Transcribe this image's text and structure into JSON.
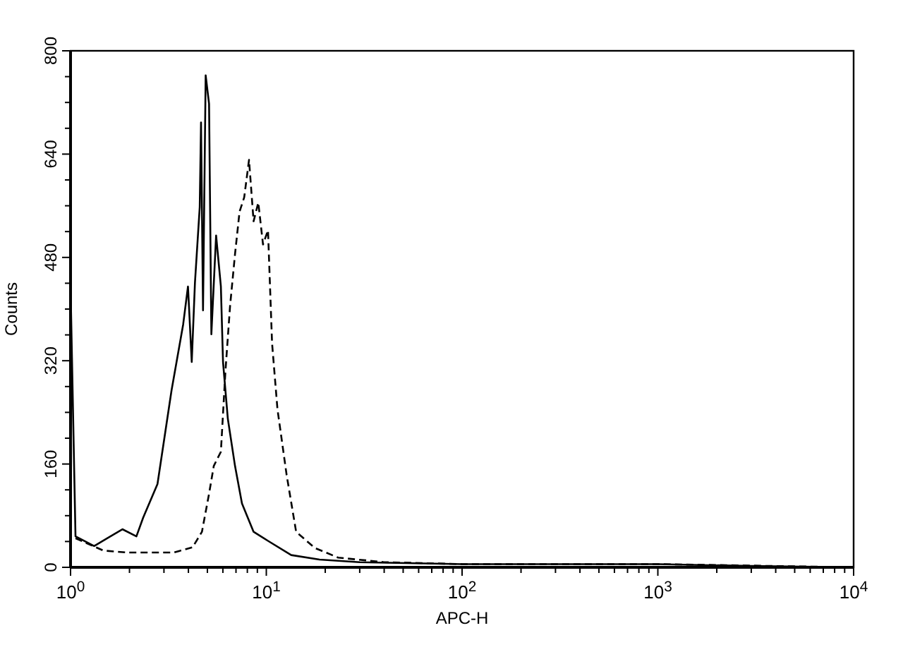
{
  "chart_data": {
    "type": "line",
    "xlabel": "APC-H",
    "ylabel": "Counts",
    "log": "x",
    "grid": false,
    "xlim": [
      1,
      10000
    ],
    "ylim": [
      0,
      800
    ],
    "xticks": [
      {
        "value": 1,
        "label": "10$^{0}$"
      },
      {
        "value": 2,
        "label": null
      },
      {
        "value": 3,
        "label": null
      },
      {
        "value": 4,
        "label": null
      },
      {
        "value": 5,
        "label": null
      },
      {
        "value": 6,
        "label": null
      },
      {
        "value": 7,
        "label": null
      },
      {
        "value": 8,
        "label": null
      },
      {
        "value": 9,
        "label": null
      },
      {
        "value": 10,
        "label": "10$^{1}$"
      },
      {
        "value": 20,
        "label": null
      },
      {
        "value": 30,
        "label": null
      },
      {
        "value": 40,
        "label": null
      },
      {
        "value": 50,
        "label": null
      },
      {
        "value": 60,
        "label": null
      },
      {
        "value": 70,
        "label": null
      },
      {
        "value": 80,
        "label": null
      },
      {
        "value": 90,
        "label": null
      },
      {
        "value": 100,
        "label": "10$^{2}$"
      },
      {
        "value": 200,
        "label": null
      },
      {
        "value": 300,
        "label": null
      },
      {
        "value": 400,
        "label": null
      },
      {
        "value": 500,
        "label": null
      },
      {
        "value": 600,
        "label": null
      },
      {
        "value": 700,
        "label": null
      },
      {
        "value": 800,
        "label": null
      },
      {
        "value": 900,
        "label": null
      },
      {
        "value": 1000,
        "label": "10$^{3}$"
      },
      {
        "value": 2000,
        "label": null
      },
      {
        "value": 3000,
        "label": null
      },
      {
        "value": 4000,
        "label": null
      },
      {
        "value": 5000,
        "label": null
      },
      {
        "value": 6000,
        "label": null
      },
      {
        "value": 7000,
        "label": null
      },
      {
        "value": 8000,
        "label": null
      },
      {
        "value": 9000,
        "label": null
      },
      {
        "value": 10000,
        "label": "10$^{4}$"
      }
    ],
    "yticks": [
      0,
      {
        "value": 40,
        "label": null
      },
      {
        "value": 80,
        "label": null
      },
      {
        "value": 120,
        "label": null
      },
      160,
      {
        "value": 200,
        "label": null
      },
      {
        "value": 240,
        "label": null
      },
      {
        "value": 280,
        "label": null
      },
      320,
      {
        "value": 360,
        "label": null
      },
      {
        "value": 400,
        "label": null
      },
      {
        "value": 440,
        "label": null
      },
      480,
      {
        "value": 520,
        "label": null
      },
      {
        "value": 560,
        "label": null
      },
      {
        "value": 600,
        "label": null
      },
      640,
      {
        "value": 680,
        "label": null
      },
      {
        "value": 720,
        "label": null
      },
      {
        "value": 760,
        "label": null
      },
      800
    ],
    "series": [
      {
        "color": "#000000",
        "line_style": "solid",
        "x": [
          1,
          1.06,
          1.32,
          1.84,
          2.17,
          2.35,
          2.78,
          3.28,
          3.76,
          3.98,
          4.16,
          4.32,
          4.57,
          4.64,
          4.75,
          4.9,
          5.1,
          5.24,
          5.54,
          5.86,
          6.01,
          6.36,
          6.92,
          7.51,
          8.61,
          10.2,
          13.4,
          18.7,
          30,
          100,
          300,
          1000,
          3000,
          10000
        ],
        "values": [
          435,
          48,
          33,
          59,
          48,
          77,
          129,
          274,
          376,
          435,
          318,
          441,
          558,
          689,
          398,
          762,
          718,
          361,
          514,
          435,
          318,
          230,
          157,
          99,
          55,
          41,
          19,
          12,
          8,
          5,
          5,
          5,
          2,
          0
        ]
      },
      {
        "color": "#000000",
        "line_style": "dashed",
        "x": [
          1.06,
          1.47,
          1.94,
          2.56,
          3.37,
          4.2,
          4.69,
          5.1,
          5.39,
          5.86,
          6.18,
          6.53,
          6.92,
          7.3,
          7.71,
          8.16,
          8.61,
          9.1,
          9.62,
          10.2,
          10.7,
          11.4,
          12.7,
          14.2,
          17.7,
          23.3,
          40,
          100,
          1000,
          10000
        ],
        "values": [
          45,
          26,
          23,
          23,
          23,
          31,
          55,
          114,
          157,
          179,
          303,
          405,
          485,
          551,
          573,
          631,
          536,
          565,
          500,
          522,
          347,
          245,
          143,
          55,
          30,
          15,
          8,
          5,
          5,
          0
        ]
      }
    ]
  }
}
